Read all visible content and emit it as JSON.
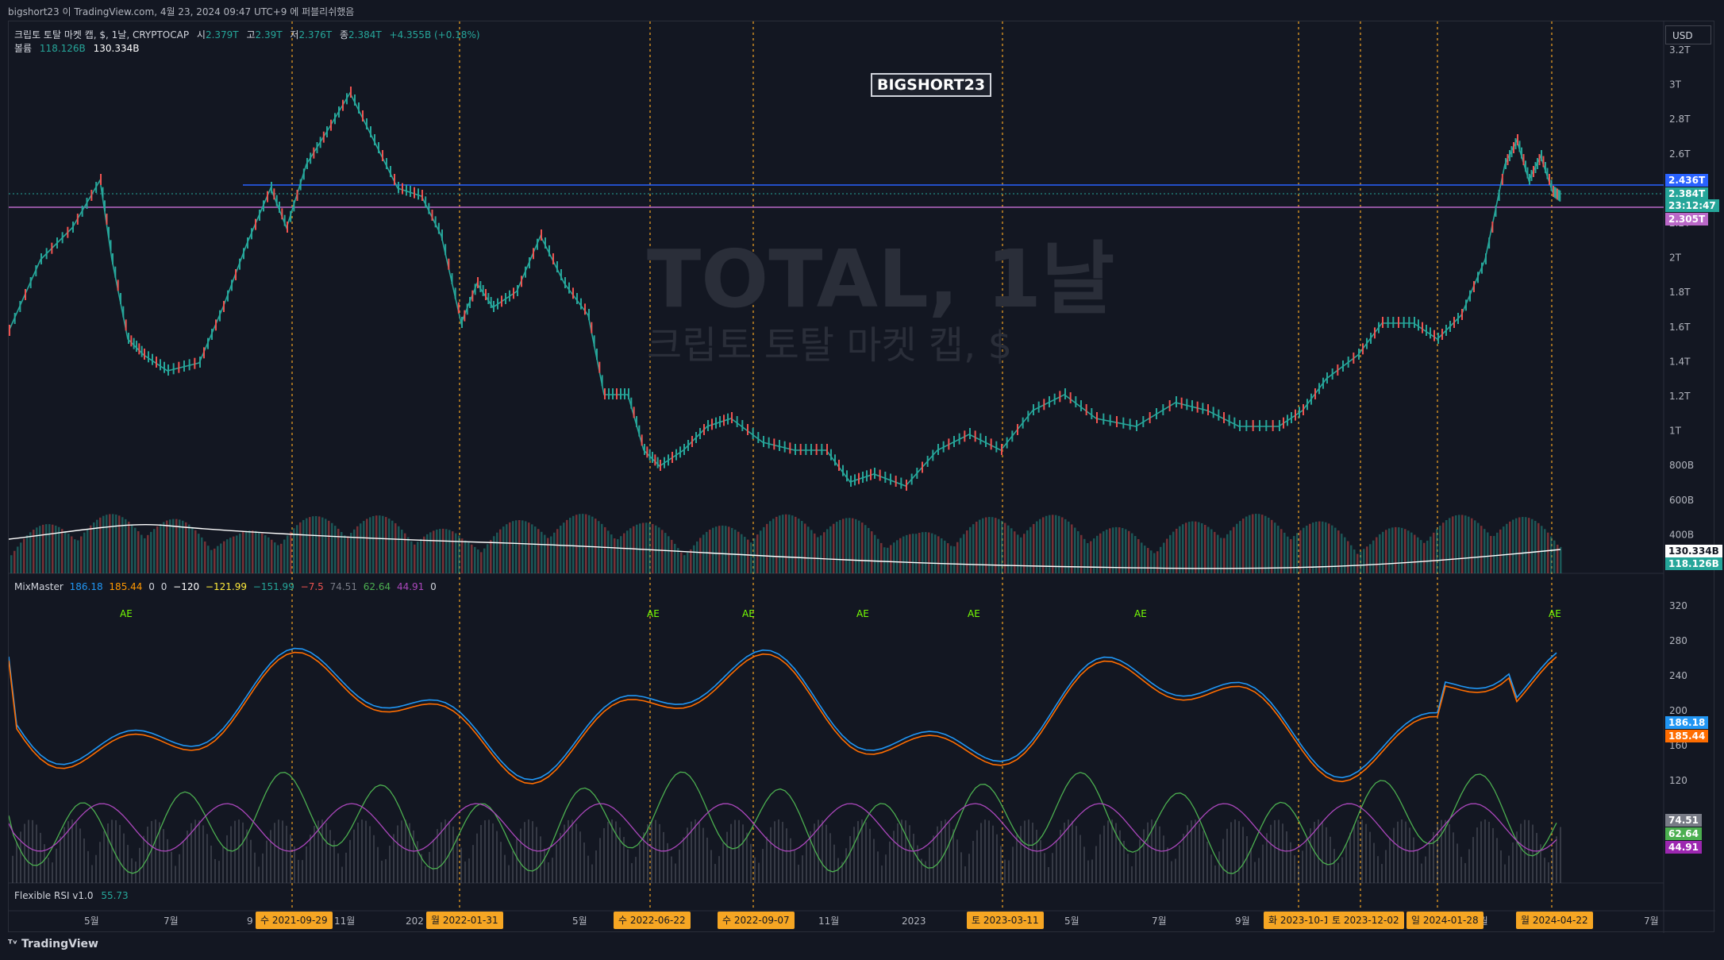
{
  "topbar": {
    "text": "bigshort23 이 TradingView.com, 4월 23, 2024 09:47 UTC+9 에 퍼블리쉬했음"
  },
  "legend": {
    "symbol": "크립토 토탈 마켓 캡, $, 1날, CRYPTOCAP",
    "open_label": "시",
    "open": "2.379T",
    "high_label": "고",
    "high": "2.39T",
    "low_label": "저",
    "low": "2.376T",
    "close_label": "종",
    "close": "2.384T",
    "change": "+4.355B (+0.18%)",
    "volume_label": "볼륨",
    "volume": "118.126B",
    "volume_ma": "130.334B"
  },
  "watermark": {
    "title": "TOTAL, 1날",
    "subtitle": "크립토 토탈 마켓 캡, $"
  },
  "annotation": "BIGSHORT23",
  "currency": "USD",
  "price_axis": [
    "3.2T",
    "3T",
    "2.8T",
    "2.6T",
    "2.2T",
    "2T",
    "1.8T",
    "1.6T",
    "1.4T",
    "1.2T",
    "1T",
    "800B",
    "600B",
    "400B"
  ],
  "price_tags": [
    {
      "text": "2.436T",
      "color": "#2962ff"
    },
    {
      "text": "2.384T",
      "color": "#26a69a"
    },
    {
      "text": "23:12:47",
      "color": "#26a69a"
    },
    {
      "text": "2.305T",
      "color": "#ba68c8"
    }
  ],
  "volume_tags": [
    {
      "text": "130.334B",
      "color": "#ffffff"
    },
    {
      "text": "118.126B",
      "color": "#26a69a"
    }
  ],
  "mixmaster": {
    "name": "MixMaster",
    "values": [
      "186.18",
      "185.44",
      "0",
      "0",
      "−120",
      "−121.99",
      "−151.99",
      "−7.5",
      "74.51",
      "62.64",
      "44.91",
      "0"
    ],
    "value_colors": [
      "#2196f3",
      "#ff9800",
      "#d1d4dc",
      "#d1d4dc",
      "#ffffff",
      "#ffeb3b",
      "#26a69a",
      "#ef5350",
      "#787b86",
      "#4caf50",
      "#ab47bc",
      "#d1d4dc"
    ],
    "axis": [
      "320",
      "280",
      "240",
      "200",
      "160",
      "120"
    ],
    "tags": [
      {
        "text": "186.18",
        "color": "#2196f3"
      },
      {
        "text": "185.44",
        "color": "#ff6d00"
      },
      {
        "text": "74.51",
        "color": "#787b86"
      },
      {
        "text": "62.64",
        "color": "#4caf50"
      },
      {
        "text": "44.91",
        "color": "#9c27b0"
      }
    ],
    "ae_label": "AE"
  },
  "flexible_rsi": {
    "name": "Flexible RSI v1.0",
    "value": "55.73"
  },
  "time_axis": [
    "5월",
    "7월",
    "9",
    "11월",
    "202",
    "5월",
    "11월",
    "2023",
    "5월",
    "7월",
    "9월",
    "3월",
    "7월"
  ],
  "date_markers": [
    "수 2021-09-29",
    "월 2022-01-31",
    "수 2022-06-22",
    "수 2022-09-07",
    "토 2023-03-11",
    "화 2023-10-1",
    "토 2023-12-02",
    "일 2024-01-28",
    "월 2024-04-22"
  ],
  "brand": "TradingView",
  "colors": {
    "background": "#131722",
    "up": "#26a69a",
    "down": "#ef5350",
    "marker": "#f6a623"
  }
}
